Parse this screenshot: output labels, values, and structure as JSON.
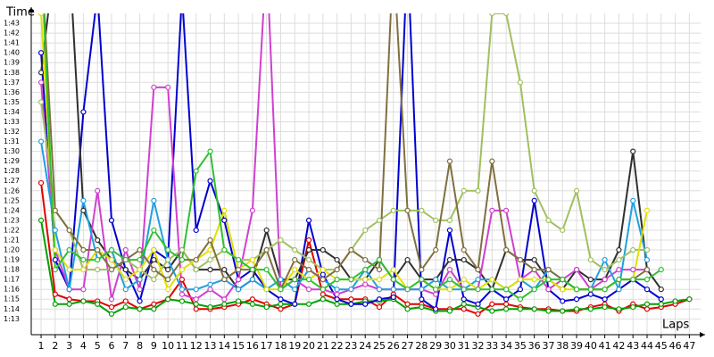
{
  "chart_data": {
    "type": "line",
    "y_label": "Time",
    "x_label": "Laps",
    "x": [
      1,
      2,
      3,
      4,
      5,
      6,
      7,
      8,
      9,
      10,
      11,
      12,
      13,
      14,
      15,
      16,
      17,
      18,
      19,
      20,
      21,
      22,
      23,
      24,
      25,
      26,
      27,
      28,
      29,
      30,
      31,
      32,
      33,
      34,
      35,
      36,
      37,
      38,
      39,
      40,
      41,
      42,
      43,
      44,
      45,
      46,
      47
    ],
    "xlim": [
      0.3,
      47.8
    ],
    "ylim": [
      71.4,
      104
    ],
    "yticks": [
      {
        "value": 73,
        "label": "1:13"
      },
      {
        "value": 74,
        "label": "1:14"
      },
      {
        "value": 75,
        "label": "1:15"
      },
      {
        "value": 76,
        "label": "1:16"
      },
      {
        "value": 77,
        "label": "1:17"
      },
      {
        "value": 78,
        "label": "1:18"
      },
      {
        "value": 79,
        "label": "1:19"
      },
      {
        "value": 80,
        "label": "1:20"
      },
      {
        "value": 81,
        "label": "1:21"
      },
      {
        "value": 82,
        "label": "1:22"
      },
      {
        "value": 83,
        "label": "1:23"
      },
      {
        "value": 84,
        "label": "1:24"
      },
      {
        "value": 85,
        "label": "1:25"
      },
      {
        "value": 86,
        "label": "1:26"
      },
      {
        "value": 87,
        "label": "1:27"
      },
      {
        "value": 88,
        "label": "1:28"
      },
      {
        "value": 89,
        "label": "1:29"
      },
      {
        "value": 90,
        "label": "1:30"
      },
      {
        "value": 91,
        "label": "1:31"
      },
      {
        "value": 92,
        "label": "1:32"
      },
      {
        "value": 93,
        "label": "1:33"
      },
      {
        "value": 94,
        "label": "1:34"
      },
      {
        "value": 95,
        "label": "1:35"
      },
      {
        "value": 96,
        "label": "1:36"
      },
      {
        "value": 97,
        "label": "1:37"
      },
      {
        "value": 98,
        "label": "1:38"
      },
      {
        "value": 99,
        "label": "1:39"
      },
      {
        "value": 100,
        "label": "1:40"
      },
      {
        "value": 101,
        "label": "1:41"
      },
      {
        "value": 102,
        "label": "1:42"
      },
      {
        "value": 103,
        "label": "1:43"
      }
    ],
    "grid": true,
    "series": [
      {
        "color": "#e00000",
        "values": [
          86.8,
          75.5,
          75,
          74.8,
          74.8,
          74.2,
          74.8,
          74,
          74.5,
          75,
          77,
          74,
          74,
          74.2,
          74.5,
          75,
          74.5,
          74,
          74.5,
          81,
          75.5,
          75,
          75,
          75,
          74.2,
          75.5,
          74.5,
          74.5,
          74,
          74,
          74,
          73.5,
          74.5,
          74.5,
          74.2,
          74,
          74,
          73.8,
          73.8,
          74.2,
          74.5,
          73.8,
          74.5,
          74,
          74.2,
          74.5,
          75
        ]
      },
      {
        "color": "#00a000",
        "values": [
          83,
          74.5,
          74.5,
          74.8,
          74.5,
          73.5,
          74.2,
          74,
          74,
          75,
          74.8,
          74.5,
          74.2,
          74.5,
          74.8,
          74.5,
          74.2,
          74.5,
          74.5,
          74.5,
          75,
          74.5,
          74.5,
          74.8,
          74.8,
          75,
          74,
          74.2,
          73.8,
          73.8,
          74.5,
          74.2,
          73.8,
          74,
          74,
          74,
          73.8,
          73.8,
          74,
          74,
          74.2,
          74,
          74.2,
          74.5,
          74.5,
          74.8,
          75
        ]
      },
      {
        "color": "#0000d0",
        "values": [
          100,
          79,
          76,
          94,
          106,
          83,
          78,
          74.8,
          80,
          79,
          106,
          82,
          87,
          83,
          77,
          78,
          76,
          75,
          74.5,
          83,
          77.5,
          75,
          74.5,
          74.5,
          75,
          75.2,
          110,
          75,
          74,
          82,
          75,
          74.5,
          76,
          75,
          76,
          85,
          76,
          74.8,
          75,
          75.5,
          75,
          76,
          77,
          76,
          75,
          null,
          null
        ]
      },
      {
        "color": "#303030",
        "values": [
          98,
          110,
          110,
          84,
          81,
          79,
          78,
          77,
          79,
          78,
          80,
          78,
          78,
          78,
          76,
          77,
          82,
          77,
          77,
          80,
          80,
          79,
          77,
          77,
          79,
          77,
          79,
          77,
          77,
          79,
          79,
          78,
          76,
          80,
          79,
          79,
          77,
          76,
          78,
          77,
          77,
          80,
          90,
          78,
          76,
          null,
          null
        ]
      },
      {
        "color": "#d040d0",
        "values": [
          97,
          80,
          76,
          76,
          86,
          75,
          80,
          76,
          96.5,
          96.5,
          75.5,
          75,
          76,
          75,
          77,
          84,
          110,
          76,
          77,
          76,
          76,
          75.5,
          76,
          76.5,
          76,
          76,
          76,
          76,
          75.5,
          78,
          76,
          76,
          84,
          84,
          77,
          78,
          76,
          77,
          78,
          76,
          77,
          78,
          78,
          78,
          null,
          null,
          null
        ]
      },
      {
        "color": "#20a0e0",
        "values": [
          91,
          82,
          76,
          85,
          79,
          80,
          76,
          77,
          85,
          79,
          76,
          76,
          76.5,
          77,
          76,
          77,
          76,
          77,
          76,
          78,
          77,
          76,
          76,
          78,
          76,
          76,
          76,
          76,
          77,
          76,
          76,
          77,
          77,
          76,
          77,
          76,
          78,
          77,
          76,
          76,
          79,
          76,
          85,
          79,
          null,
          null,
          null
        ]
      },
      {
        "color": "#a0c060",
        "values": [
          95,
          84,
          82,
          78,
          78,
          78,
          79,
          78,
          77,
          79,
          80,
          78,
          79,
          80,
          79,
          79,
          80,
          81,
          80,
          79,
          78,
          78,
          80,
          82,
          83,
          84,
          84,
          84,
          83,
          83,
          86,
          86,
          104,
          104,
          97,
          86,
          83,
          82,
          86,
          79,
          78,
          79,
          80,
          80,
          null,
          null,
          null
        ]
      },
      {
        "color": "#e0e000",
        "values": [
          104,
          80,
          78,
          78,
          80,
          79,
          77,
          78,
          80,
          76,
          78,
          79,
          80,
          84,
          78,
          79,
          76,
          76,
          78,
          77,
          78,
          77,
          77,
          77,
          77,
          78,
          76,
          77,
          76,
          76,
          77,
          76,
          77,
          76,
          77,
          77,
          77,
          76,
          76,
          76,
          76,
          77,
          77,
          84,
          null,
          null,
          null
        ]
      },
      {
        "color": "#807040",
        "values": [
          110,
          84,
          82,
          80,
          80,
          78,
          79,
          80,
          78,
          77,
          79,
          79,
          81,
          77,
          78,
          78,
          80,
          76,
          79,
          78,
          77,
          78,
          80,
          79,
          78,
          110,
          84,
          78,
          80,
          89,
          80,
          78,
          89,
          80,
          79,
          78,
          78,
          77,
          76,
          76,
          76,
          77,
          77,
          78,
          null,
          null,
          null
        ]
      },
      {
        "color": "#30c030",
        "values": [
          110,
          78,
          80,
          79,
          79,
          80,
          79,
          79,
          82,
          80,
          79,
          88,
          90,
          80,
          79,
          78,
          78,
          76,
          77,
          77,
          76,
          77,
          77,
          78,
          79,
          77,
          76,
          77,
          76,
          77,
          76,
          76,
          76,
          76,
          75,
          76,
          77,
          77,
          76,
          76,
          76,
          77,
          77,
          77,
          78,
          null,
          null
        ]
      }
    ]
  }
}
